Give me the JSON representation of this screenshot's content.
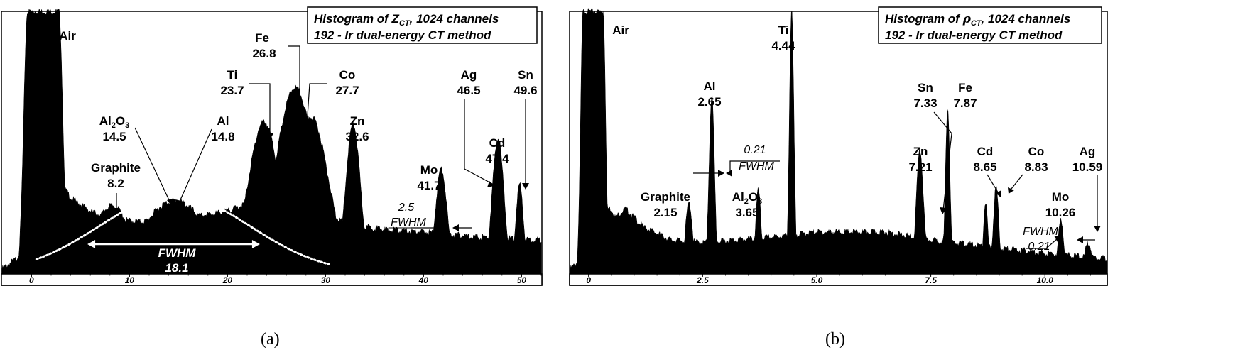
{
  "chart_data": [
    {
      "type": "area",
      "title_line1_pre": "Histogram of Z",
      "title_line1_sub": "CT",
      "title_line1_post": ", 1024 channels",
      "title_line2": "192 - Ir dual-energy CT method",
      "caption": "(a)",
      "xlim": [
        -3,
        52
      ],
      "ylim": [
        0,
        1
      ],
      "ticks": [
        {
          "value": 0,
          "label": "0"
        },
        {
          "value": 10,
          "label": "10"
        },
        {
          "value": 20,
          "label": "20"
        },
        {
          "value": 30,
          "label": "30"
        },
        {
          "value": 40,
          "label": "40"
        },
        {
          "value": 50,
          "label": "50"
        }
      ],
      "baseline": 0.05,
      "background": [
        {
          "x": -3,
          "y": 0.02
        },
        {
          "x": -1.5,
          "y": 0.06
        },
        {
          "x": 0,
          "y": 0.16
        },
        {
          "x": 3,
          "y": 0.35
        },
        {
          "x": 4,
          "y": 0.29
        },
        {
          "x": 6,
          "y": 0.24
        },
        {
          "x": 8,
          "y": 0.21
        },
        {
          "x": 11,
          "y": 0.2
        },
        {
          "x": 14,
          "y": 0.21
        },
        {
          "x": 17,
          "y": 0.22
        },
        {
          "x": 20,
          "y": 0.24
        },
        {
          "x": 22,
          "y": 0.27
        },
        {
          "x": 25,
          "y": 0.29
        },
        {
          "x": 28,
          "y": 0.28
        },
        {
          "x": 30,
          "y": 0.24
        },
        {
          "x": 32,
          "y": 0.19
        },
        {
          "x": 36,
          "y": 0.17
        },
        {
          "x": 40,
          "y": 0.16
        },
        {
          "x": 46,
          "y": 0.14
        },
        {
          "x": 52,
          "y": 0.13
        }
      ],
      "peaks": [
        {
          "center": 1.2,
          "height": 1.0,
          "width": 1.6,
          "flat": true
        },
        {
          "center": 8.2,
          "height": 0.26,
          "width": 2.0
        },
        {
          "center": 14.6,
          "height": 0.28,
          "width": 3.5
        },
        {
          "center": 23.7,
          "height": 0.58,
          "width": 1.6
        },
        {
          "center": 26.9,
          "height": 0.71,
          "width": 2.0
        },
        {
          "center": 28.5,
          "height": 0.6,
          "width": 1.8
        },
        {
          "center": 32.8,
          "height": 0.57,
          "width": 0.75
        },
        {
          "center": 41.8,
          "height": 0.4,
          "width": 0.6
        },
        {
          "center": 47.6,
          "height": 0.52,
          "width": 0.6
        },
        {
          "center": 49.8,
          "height": 0.34,
          "width": 0.4
        }
      ],
      "gauss_curve": {
        "center": 14.6,
        "height": 0.3,
        "sigma": 7.7,
        "from": 0.5,
        "to": 30.5
      },
      "fwhm_arrow": {
        "from": 5.7,
        "to": 23.3,
        "y": 0.14
      },
      "fwhm_label": "FWHM",
      "fwhm_value": "18.1",
      "small_fwhm_label1": "2.5",
      "small_fwhm_label2": "FWHM",
      "small_fwhm_at": 42,
      "labels": [
        {
          "name": "Air",
          "value": ""
        },
        {
          "name": "Graphite",
          "value": "8.2"
        },
        {
          "name": "Al2O3",
          "name_base": "Al",
          "name_sub": "2",
          "name_mid": "O",
          "name_sub2": "3",
          "value": "14.5"
        },
        {
          "name": "Al",
          "value": "14.8"
        },
        {
          "name": "Ti",
          "value": "23.7"
        },
        {
          "name": "Fe",
          "value": "26.8"
        },
        {
          "name": "Co",
          "value": "27.7"
        },
        {
          "name": "Zn",
          "value": "32.6"
        },
        {
          "name": "Mo",
          "value": "41.7"
        },
        {
          "name": "Ag",
          "value": "46.5"
        },
        {
          "name": "Cd",
          "value": "47.4"
        },
        {
          "name": "Sn",
          "value": "49.6"
        }
      ]
    },
    {
      "type": "area",
      "title_line1_pre": "Histogram of ",
      "title_line1_rho": "ρ",
      "title_line1_sub": "CT",
      "title_line1_post": ", 1024 channels",
      "title_line2": "192 - Ir dual-energy CT method",
      "caption": "(b)",
      "xlim": [
        -0.4,
        11.35
      ],
      "ylim": [
        0,
        1
      ],
      "ticks": [
        {
          "value": 0,
          "label": "0"
        },
        {
          "value": 2.5,
          "label": "2.5"
        },
        {
          "value": 5.0,
          "label": "5.0"
        },
        {
          "value": 7.5,
          "label": "7.5"
        },
        {
          "value": 10.0,
          "label": "10.0"
        }
      ],
      "baseline": 0.04,
      "background": [
        {
          "x": -0.4,
          "y": 0.02
        },
        {
          "x": -0.2,
          "y": 0.05
        },
        {
          "x": 0,
          "y": 0.12
        },
        {
          "x": 0.8,
          "y": 0.25
        },
        {
          "x": 1.2,
          "y": 0.18
        },
        {
          "x": 1.8,
          "y": 0.13
        },
        {
          "x": 2.5,
          "y": 0.12
        },
        {
          "x": 4,
          "y": 0.14
        },
        {
          "x": 5,
          "y": 0.16
        },
        {
          "x": 6.5,
          "y": 0.16
        },
        {
          "x": 7.5,
          "y": 0.13
        },
        {
          "x": 8.5,
          "y": 0.11
        },
        {
          "x": 10,
          "y": 0.08
        },
        {
          "x": 11.35,
          "y": 0.06
        }
      ],
      "peaks": [
        {
          "center": 0.1,
          "height": 1.0,
          "width": 0.22,
          "flat": true
        },
        {
          "center": 0.45,
          "height": 0.25,
          "width": 0.25
        },
        {
          "center": 2.2,
          "height": 0.27,
          "width": 0.08
        },
        {
          "center": 2.7,
          "height": 0.68,
          "width": 0.06
        },
        {
          "center": 3.72,
          "height": 0.32,
          "width": 0.06
        },
        {
          "center": 4.45,
          "height": 1.0,
          "width": 0.05
        },
        {
          "center": 7.26,
          "height": 0.47,
          "width": 0.08
        },
        {
          "center": 7.87,
          "height": 0.63,
          "width": 0.05
        },
        {
          "center": 8.7,
          "height": 0.27,
          "width": 0.05
        },
        {
          "center": 8.93,
          "height": 0.33,
          "width": 0.06
        },
        {
          "center": 10.35,
          "height": 0.21,
          "width": 0.06
        },
        {
          "center": 10.95,
          "height": 0.12,
          "width": 0.08
        }
      ],
      "fwhm_label": "FWHM",
      "fwhm_small_value": "0.21",
      "fwhm_top_at": 2.7,
      "fwhm_bottom_at": 10.35,
      "labels": [
        {
          "name": "Air",
          "value": ""
        },
        {
          "name": "Graphite",
          "value": "2.15"
        },
        {
          "name": "Al",
          "value": "2.65"
        },
        {
          "name": "Al2O3",
          "name_base": "Al",
          "name_sub": "2",
          "name_mid": "O",
          "name_sub2": "3",
          "value": "3.65"
        },
        {
          "name": "Ti",
          "value": "4.44"
        },
        {
          "name": "Zn",
          "value": "7.21"
        },
        {
          "name": "Sn",
          "value": "7.33"
        },
        {
          "name": "Fe",
          "value": "7.87"
        },
        {
          "name": "Cd",
          "value": "8.65"
        },
        {
          "name": "Co",
          "value": "8.83"
        },
        {
          "name": "Ag",
          "value": "10.59"
        },
        {
          "name": "Mo",
          "value": "10.26"
        }
      ]
    }
  ]
}
